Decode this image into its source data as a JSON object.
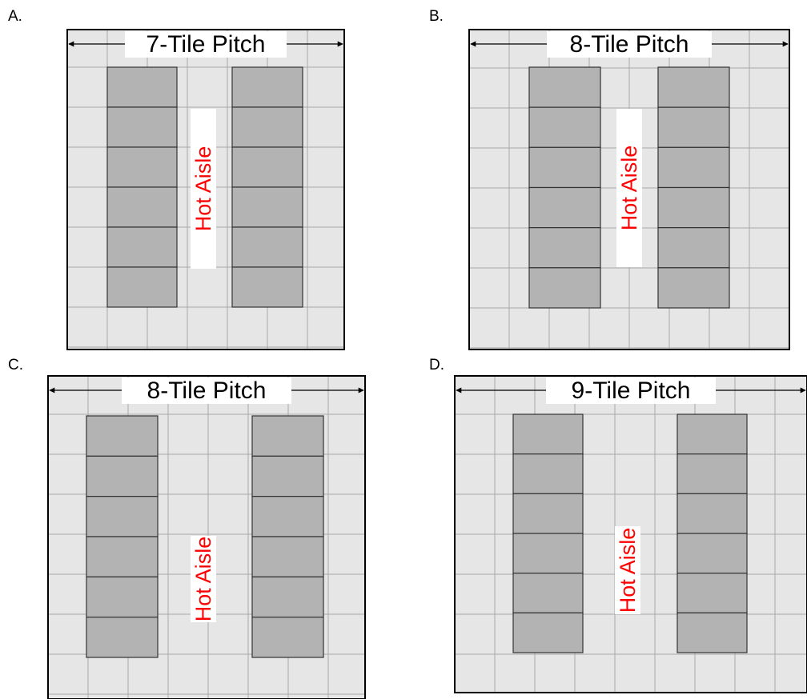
{
  "colors": {
    "floor": "#e6e6e6",
    "grid_line": "#a8a8a8",
    "border": "#000000",
    "rack": "#b3b3b3",
    "rack_outline": "#333333",
    "aisle_text": "#ff0000",
    "label_background": "#ffffff"
  },
  "panels": [
    {
      "letter": "A.",
      "pitch_label": "7-Tile Pitch",
      "aisle_label": "Hot Aisle",
      "pitch_tiles": 7,
      "racks_per_row": 6
    },
    {
      "letter": "B.",
      "pitch_label": "8-Tile Pitch",
      "aisle_label": "Hot Aisle",
      "pitch_tiles": 8,
      "racks_per_row": 6
    },
    {
      "letter": "C.",
      "pitch_label": "8-Tile Pitch",
      "aisle_label": "Hot Aisle",
      "pitch_tiles": 8,
      "racks_per_row": 6
    },
    {
      "letter": "D.",
      "pitch_label": "9-Tile Pitch",
      "aisle_label": "Hot Aisle",
      "pitch_tiles": 9,
      "racks_per_row": 6
    }
  ]
}
